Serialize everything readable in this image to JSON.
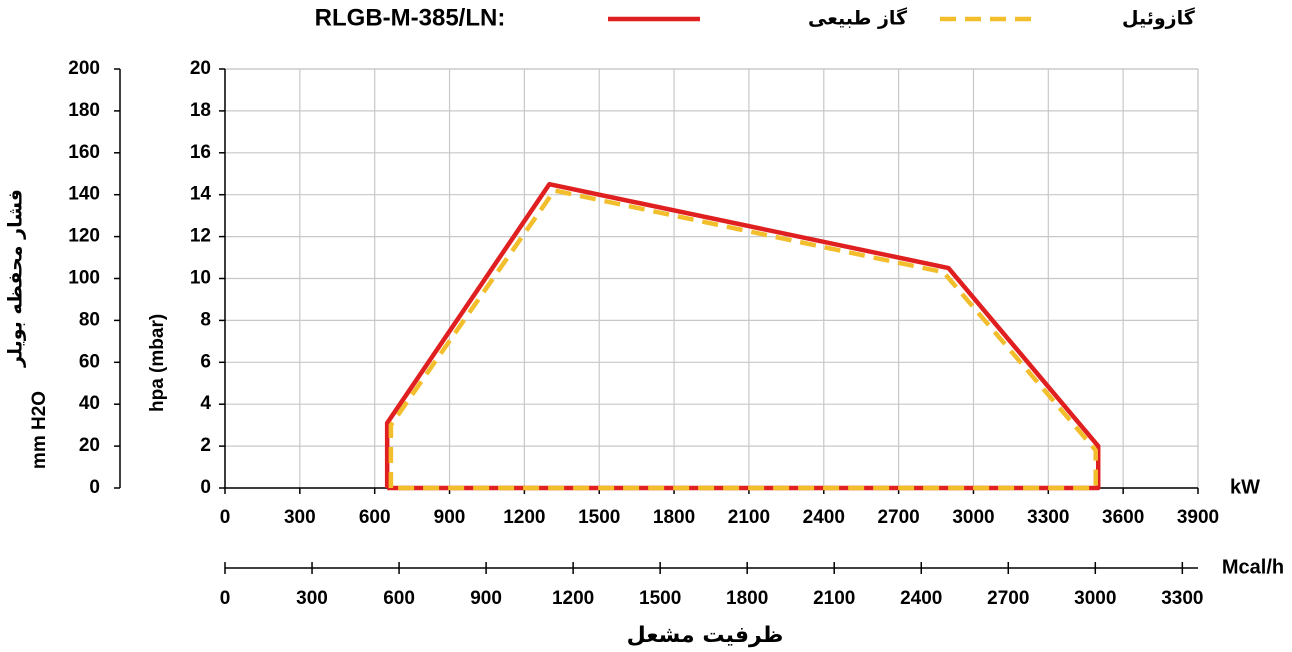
{
  "chart_data": {
    "type": "line",
    "title": "RLGB-M-385/LN:",
    "x_unit": "kW",
    "x2_unit": "Mcal/h",
    "x_label": "ظرفیت مشعل",
    "y_label": "hpa (mbar)",
    "y2_label_lines": [
      "فشار محفظه بویلر",
      "mm H2O"
    ],
    "xlim": [
      0,
      3900
    ],
    "xticks": [
      0,
      300,
      600,
      900,
      1200,
      1500,
      1800,
      2100,
      2400,
      2700,
      3000,
      3300,
      3600,
      3900
    ],
    "x2lim": [
      0,
      3354
    ],
    "x2ticks": [
      0,
      300,
      600,
      900,
      1200,
      1500,
      1800,
      2100,
      2400,
      2700,
      3000,
      3300
    ],
    "ylim": [
      0,
      20
    ],
    "yticks": [
      0,
      2,
      4,
      6,
      8,
      10,
      12,
      14,
      16,
      18,
      20
    ],
    "y2lim": [
      0,
      200
    ],
    "y2ticks": [
      0,
      20,
      40,
      60,
      80,
      100,
      120,
      140,
      160,
      180,
      200
    ],
    "grid": true,
    "series": [
      {
        "name": "گاز طبیعی",
        "color": "#e02020",
        "dashed": false,
        "x": [
          650,
          650,
          1300,
          2900,
          3500,
          3500,
          650
        ],
        "values": [
          0,
          3.1,
          14.5,
          10.5,
          2,
          0,
          0
        ]
      },
      {
        "name": "گازوئیل",
        "color": "#f2be2c",
        "dashed": true,
        "x": [
          665,
          665,
          1320,
          2880,
          3490,
          3490,
          665
        ],
        "values": [
          0,
          3,
          14.2,
          10.3,
          1.8,
          0,
          0
        ]
      }
    ]
  }
}
